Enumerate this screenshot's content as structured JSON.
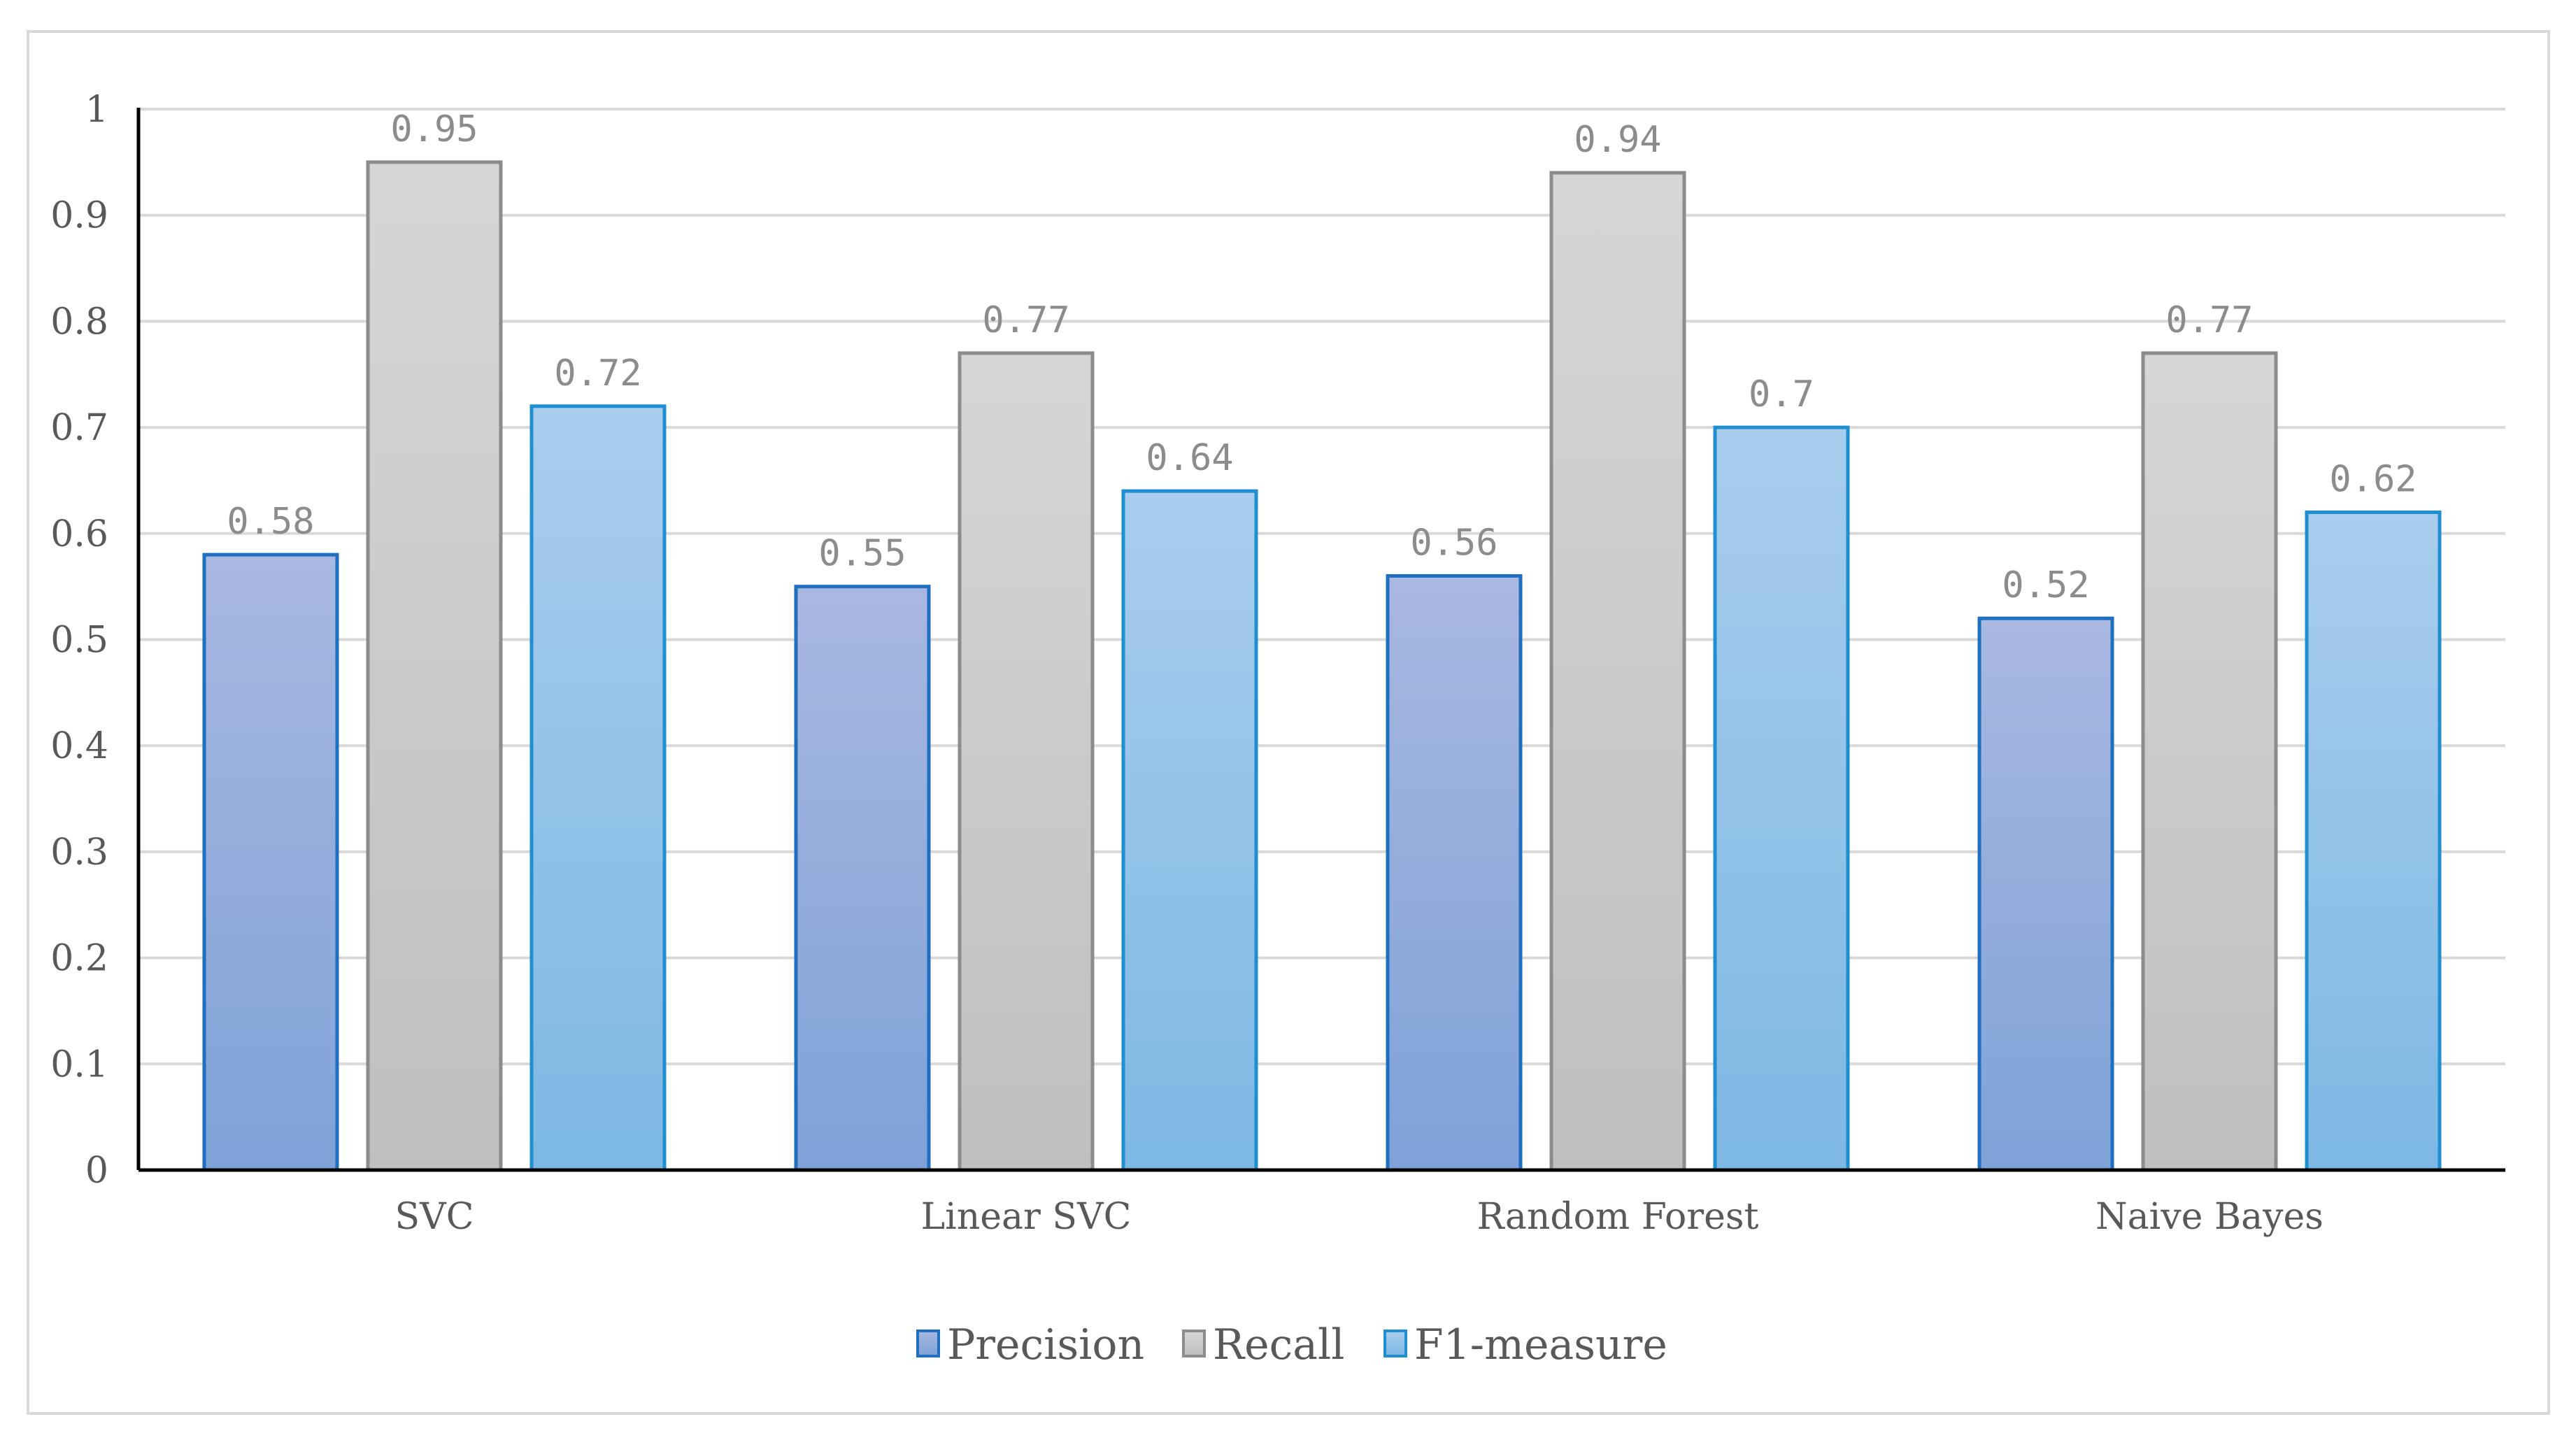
{
  "chart_data": {
    "type": "bar",
    "categories": [
      "SVC",
      "Linear SVC",
      "Random Forest",
      "Naive Bayes"
    ],
    "series": [
      {
        "name": "Precision",
        "values": [
          0.58,
          0.55,
          0.56,
          0.52
        ],
        "color_top": "#a9b8e0",
        "color_bottom": "#7ea2d8",
        "stroke": "#1f6fc1"
      },
      {
        "name": "Recall",
        "values": [
          0.95,
          0.77,
          0.94,
          0.77
        ],
        "color_top": "#d6d6d6",
        "color_bottom": "#bfbfbf",
        "stroke": "#8c8c8c"
      },
      {
        "name": "F1-measure",
        "values": [
          0.72,
          0.64,
          0.7,
          0.62
        ],
        "color_top": "#a9cdec",
        "color_bottom": "#7db8e4",
        "stroke": "#1f8fd1"
      }
    ],
    "data_labels": [
      [
        "0.58",
        "0.55",
        "0.56",
        "0.52"
      ],
      [
        "0.95",
        "0.77",
        "0.94",
        "0.77"
      ],
      [
        "0.72",
        "0.64",
        "0.7",
        "0.62"
      ]
    ],
    "ylim": [
      0,
      1
    ],
    "yticks": [
      0,
      0.1,
      0.2,
      0.3,
      0.4,
      0.5,
      0.6,
      0.7,
      0.8,
      0.9,
      1
    ],
    "ytick_labels": [
      "0",
      "0.1",
      "0.2",
      "0.3",
      "0.4",
      "0.5",
      "0.6",
      "0.7",
      "0.8",
      "0.9",
      "1"
    ],
    "title": "",
    "xlabel": "",
    "ylabel": "",
    "grid": true,
    "legend_position": "bottom"
  }
}
